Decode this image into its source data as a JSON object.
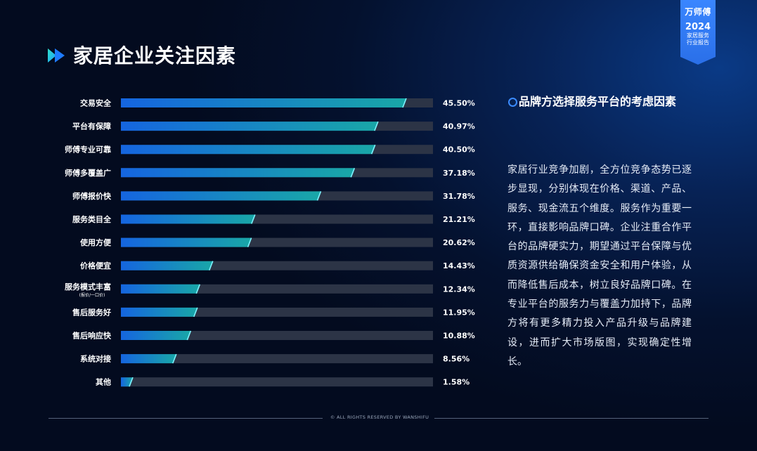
{
  "badge": {
    "brand": "万师傅",
    "year": "2024",
    "subtitle_line1": "家居服务",
    "subtitle_line2": "行业报告"
  },
  "page": {
    "title": "家居企业关注因素"
  },
  "colors": {
    "bar_start": "#1565e0",
    "bar_end": "#19a7a7",
    "track": "#2c3446",
    "accent": "#3b8bff"
  },
  "chart_data": {
    "type": "bar",
    "orientation": "horizontal",
    "categories": [
      "交易安全",
      "平台有保障",
      "师傅专业可靠",
      "师傅多覆盖广",
      "师傅报价快",
      "服务类目全",
      "使用方便",
      "价格便宜",
      "服务模式丰富",
      "售后服务好",
      "售后响应快",
      "系统对接",
      "其他"
    ],
    "category_notes": [
      "",
      "",
      "",
      "",
      "",
      "",
      "",
      "",
      "(报价/一口价)",
      "",
      "",
      "",
      ""
    ],
    "values": [
      45.5,
      40.97,
      40.5,
      37.18,
      31.78,
      21.21,
      20.62,
      14.43,
      12.34,
      11.95,
      10.88,
      8.56,
      1.58
    ],
    "value_labels": [
      "45.50%",
      "40.97%",
      "40.50%",
      "37.18%",
      "31.78%",
      "21.21%",
      "20.62%",
      "14.43%",
      "12.34%",
      "11.95%",
      "10.88%",
      "8.56%",
      "1.58%"
    ],
    "xlim": [
      0,
      50
    ],
    "grid": false,
    "legend": "none"
  },
  "sidebar": {
    "title": "品牌方选择服务平台的考虑因素",
    "body": "家居行业竞争加剧，全方位竞争态势已逐步显现，分别体现在价格、渠道、产品、服务、现金流五个维度。服务作为重要一环，直接影响品牌口碑。企业注重合作平台的品牌硬实力，期望通过平台保障与优质资源供给确保资金安全和用户体验，从而降低售后成本，树立良好品牌口碑。在专业平台的服务力与覆盖力加持下，品牌方将有更多精力投入产品升级与品牌建设，进而扩大市场版图，实现确定性增长。"
  },
  "footer": {
    "text": "© ALL RIGHTS RESERVED BY WANSHIFU"
  }
}
